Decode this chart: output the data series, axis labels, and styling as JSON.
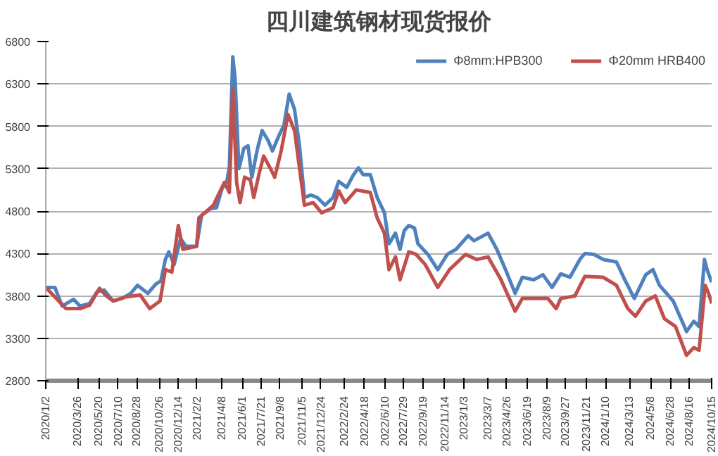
{
  "chart_data": {
    "type": "line",
    "title": "四川建筑钢材现货报价",
    "ylim": [
      2800,
      6800
    ],
    "yticks": [
      2800,
      3300,
      3800,
      4300,
      4800,
      5300,
      5800,
      6300,
      6800
    ],
    "xlim": [
      "2020-01-02",
      "2024-10-15"
    ],
    "xticks": [
      {
        "value": "2020-01-02",
        "label": "2020/1/2"
      },
      {
        "value": "2020-03-26",
        "label": "2020/3/26"
      },
      {
        "value": "2020-05-20",
        "label": "2020/5/20"
      },
      {
        "value": "2020-07-10",
        "label": "2020/7/10"
      },
      {
        "value": "2020-08-28",
        "label": "2020/8/28"
      },
      {
        "value": "2020-10-26",
        "label": "2020/10/26"
      },
      {
        "value": "2020-12-14",
        "label": "2020/12/14"
      },
      {
        "value": "2021-02-02",
        "label": "2021/2/2"
      },
      {
        "value": "2021-04-08",
        "label": "2021/4/8"
      },
      {
        "value": "2021-06-01",
        "label": "2021/6/1"
      },
      {
        "value": "2021-07-21",
        "label": "2021/7/21"
      },
      {
        "value": "2021-09-08",
        "label": "2021/9/8"
      },
      {
        "value": "2021-11-05",
        "label": "2021/11/5"
      },
      {
        "value": "2021-12-24",
        "label": "2021/12/24"
      },
      {
        "value": "2022-02-24",
        "label": "2022/2/24"
      },
      {
        "value": "2022-04-18",
        "label": "2022/4/18"
      },
      {
        "value": "2022-06-10",
        "label": "2022/6/10"
      },
      {
        "value": "2022-07-29",
        "label": "2022/7/29"
      },
      {
        "value": "2022-09-19",
        "label": "2022/9/19"
      },
      {
        "value": "2022-11-14",
        "label": "2022/11/14"
      },
      {
        "value": "2023-01-03",
        "label": "2023/1/3"
      },
      {
        "value": "2023-03-07",
        "label": "2023/3/7"
      },
      {
        "value": "2023-04-26",
        "label": "2023/4/26"
      },
      {
        "value": "2023-06-19",
        "label": "2023/6/19"
      },
      {
        "value": "2023-08-09",
        "label": "2023/8/9"
      },
      {
        "value": "2023-09-27",
        "label": "2023/9/27"
      },
      {
        "value": "2023-11-21",
        "label": "2023/11/21"
      },
      {
        "value": "2024-01-10",
        "label": "2024/1/10"
      },
      {
        "value": "2024-03-13",
        "label": "2024/3/13"
      },
      {
        "value": "2024-05-08",
        "label": "2024/5/8"
      },
      {
        "value": "2024-06-28",
        "label": "2024/6/28"
      },
      {
        "value": "2024-08-16",
        "label": "2024/8/16"
      },
      {
        "value": "2024-10-15",
        "label": "2024/10/15"
      }
    ],
    "grid": "y",
    "legend": "top right",
    "line_style": "solid",
    "series": [
      {
        "name": "Φ8mm:HPB300",
        "color": "#4f81bd",
        "x": [
          "2020-01-02",
          "2020-01-26",
          "2020-02-14",
          "2020-03-15",
          "2020-04-01",
          "2020-04-26",
          "2020-05-16",
          "2020-06-03",
          "2020-06-27",
          "2020-07-20",
          "2020-08-12",
          "2020-08-30",
          "2020-09-26",
          "2020-10-17",
          "2020-10-30",
          "2020-11-11",
          "2020-11-20",
          "2020-12-04",
          "2020-12-21",
          "2021-01-04",
          "2021-02-01",
          "2021-02-14",
          "2021-03-10",
          "2021-03-25",
          "2021-04-09",
          "2021-04-21",
          "2021-04-28",
          "2021-05-07",
          "2021-05-13",
          "2021-05-23",
          "2021-06-05",
          "2021-06-16",
          "2021-06-26",
          "2021-07-10",
          "2021-07-23",
          "2021-08-08",
          "2021-08-19",
          "2021-09-05",
          "2021-09-18",
          "2021-10-02",
          "2021-10-16",
          "2021-10-29",
          "2021-11-11",
          "2021-11-28",
          "2021-12-15",
          "2022-01-04",
          "2022-01-25",
          "2022-02-09",
          "2022-03-02",
          "2022-03-20",
          "2022-04-02",
          "2022-04-14",
          "2022-05-03",
          "2022-05-21",
          "2022-06-09",
          "2022-06-21",
          "2022-07-08",
          "2022-07-20",
          "2022-07-31",
          "2022-08-12",
          "2022-08-27",
          "2022-09-05",
          "2022-10-01",
          "2022-10-27",
          "2022-11-21",
          "2022-12-14",
          "2023-01-15",
          "2023-01-30",
          "2023-03-08",
          "2023-03-31",
          "2023-04-23",
          "2023-05-18",
          "2023-06-06",
          "2023-07-06",
          "2023-07-30",
          "2023-08-23",
          "2023-09-15",
          "2023-10-09",
          "2023-11-04",
          "2023-11-17",
          "2023-12-11",
          "2024-01-04",
          "2024-02-08",
          "2024-03-01",
          "2024-03-26",
          "2024-04-25",
          "2024-05-14",
          "2024-05-31",
          "2024-07-06",
          "2024-08-10",
          "2024-08-29",
          "2024-09-12",
          "2024-09-26",
          "2024-10-03",
          "2024-10-15"
        ],
        "values": [
          3900,
          3900,
          3680,
          3760,
          3680,
          3710,
          3850,
          3870,
          3740,
          3770,
          3830,
          3925,
          3830,
          3940,
          3975,
          4230,
          4320,
          4170,
          4475,
          4385,
          4385,
          4750,
          4830,
          4840,
          5070,
          5140,
          5325,
          6620,
          6360,
          5300,
          5540,
          5570,
          5200,
          5520,
          5750,
          5630,
          5510,
          5690,
          5810,
          6180,
          6000,
          5570,
          4960,
          4990,
          4960,
          4870,
          4960,
          5150,
          5080,
          5230,
          5310,
          5230,
          5230,
          4960,
          4780,
          4415,
          4540,
          4350,
          4570,
          4630,
          4600,
          4415,
          4290,
          4110,
          4290,
          4350,
          4510,
          4450,
          4540,
          4350,
          4110,
          3830,
          4020,
          3990,
          4050,
          3900,
          4060,
          4020,
          4230,
          4300,
          4290,
          4230,
          4200,
          3990,
          3770,
          4050,
          4110,
          3925,
          3740,
          3380,
          3500,
          3440,
          4230,
          4110,
          3960
        ]
      },
      {
        "name": "Φ20mm HRB400",
        "color": "#c0504d",
        "x": [
          "2020-01-02",
          "2020-02-24",
          "2020-04-01",
          "2020-04-26",
          "2020-05-22",
          "2020-06-09",
          "2020-06-27",
          "2020-08-01",
          "2020-09-06",
          "2020-10-01",
          "2020-10-28",
          "2020-11-11",
          "2020-11-28",
          "2020-12-15",
          "2020-12-27",
          "2021-02-01",
          "2021-02-07",
          "2021-03-17",
          "2021-04-15",
          "2021-04-28",
          "2021-05-07",
          "2021-05-17",
          "2021-05-26",
          "2021-06-07",
          "2021-06-22",
          "2021-07-01",
          "2021-07-16",
          "2021-07-27",
          "2021-08-14",
          "2021-08-25",
          "2021-09-11",
          "2021-09-29",
          "2021-10-16",
          "2021-11-11",
          "2021-12-04",
          "2021-12-26",
          "2022-01-25",
          "2022-02-09",
          "2022-02-26",
          "2022-03-27",
          "2022-05-03",
          "2022-05-21",
          "2022-06-09",
          "2022-06-21",
          "2022-07-08",
          "2022-07-20",
          "2022-08-12",
          "2022-08-31",
          "2022-09-24",
          "2022-10-27",
          "2022-11-27",
          "2023-01-08",
          "2023-02-06",
          "2023-03-08",
          "2023-04-11",
          "2023-05-18",
          "2023-06-06",
          "2023-08-12",
          "2023-09-03",
          "2023-09-15",
          "2023-10-22",
          "2023-11-17",
          "2024-01-04",
          "2024-02-08",
          "2024-03-09",
          "2024-03-29",
          "2024-04-25",
          "2024-05-20",
          "2024-06-13",
          "2024-07-12",
          "2024-08-10",
          "2024-08-29",
          "2024-09-12",
          "2024-09-28",
          "2024-10-07",
          "2024-10-15"
        ],
        "values": [
          3900,
          3650,
          3650,
          3690,
          3890,
          3800,
          3740,
          3790,
          3810,
          3650,
          3740,
          4110,
          4080,
          4630,
          4350,
          4385,
          4720,
          4870,
          5140,
          5020,
          6240,
          5140,
          4900,
          5200,
          5170,
          4960,
          5260,
          5450,
          5300,
          5200,
          5510,
          5940,
          5750,
          4870,
          4900,
          4780,
          4840,
          5040,
          4900,
          5050,
          5020,
          4720,
          4540,
          4110,
          4260,
          3990,
          4320,
          4290,
          4170,
          3900,
          4110,
          4290,
          4230,
          4260,
          3990,
          3620,
          3770,
          3770,
          3650,
          3770,
          3800,
          4030,
          4020,
          3925,
          3650,
          3560,
          3740,
          3800,
          3530,
          3440,
          3100,
          3190,
          3160,
          3925,
          3830,
          3710
        ]
      }
    ]
  }
}
